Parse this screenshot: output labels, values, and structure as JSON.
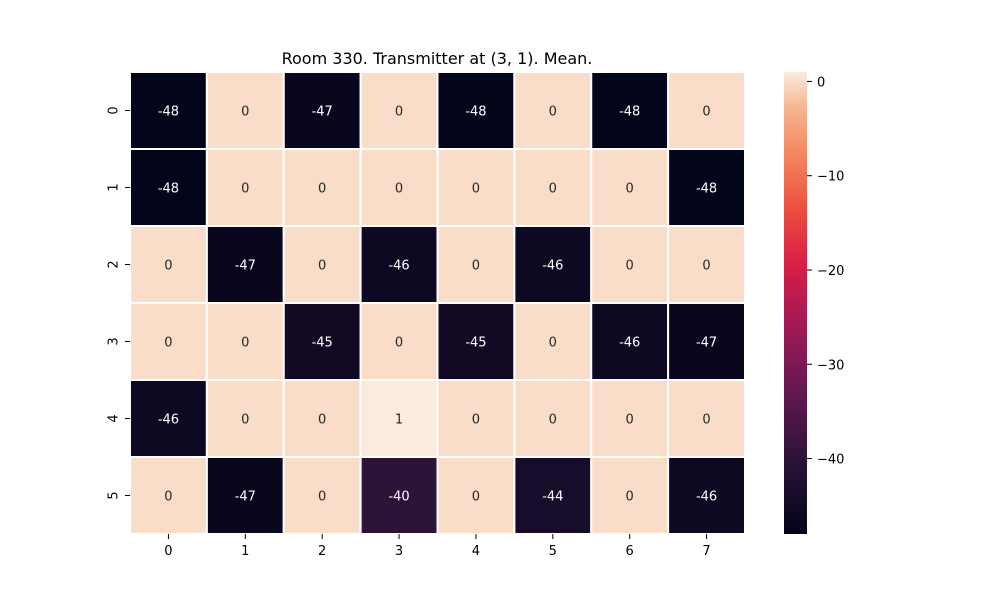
{
  "chart_data": {
    "type": "heatmap",
    "title": "Room 330. Transmitter at (3, 1). Mean.",
    "xlabel": "",
    "ylabel": "",
    "x_tick_labels": [
      "0",
      "1",
      "2",
      "3",
      "4",
      "5",
      "6",
      "7"
    ],
    "y_tick_labels": [
      "0",
      "1",
      "2",
      "3",
      "4",
      "5"
    ],
    "values": [
      [
        -48,
        0,
        -47,
        0,
        -48,
        0,
        -48,
        0
      ],
      [
        -48,
        0,
        0,
        0,
        0,
        0,
        0,
        -48
      ],
      [
        0,
        -47,
        0,
        -46,
        0,
        -46,
        0,
        0
      ],
      [
        0,
        0,
        -45,
        0,
        -45,
        0,
        -46,
        -47
      ],
      [
        -46,
        0,
        0,
        1,
        0,
        0,
        0,
        0
      ],
      [
        0,
        -47,
        0,
        -40,
        0,
        -44,
        0,
        -46
      ]
    ],
    "annotations": [
      [
        "-48",
        "0",
        "-47",
        "0",
        "-48",
        "0",
        "-48",
        "0"
      ],
      [
        "-48",
        "0",
        "0",
        "0",
        "0",
        "0",
        "0",
        "-48"
      ],
      [
        "0",
        "-47",
        "0",
        "-46",
        "0",
        "-46",
        "0",
        "0"
      ],
      [
        "0",
        "0",
        "-45",
        "0",
        "-45",
        "0",
        "-46",
        "-47"
      ],
      [
        "-46",
        "0",
        "0",
        "1",
        "0",
        "0",
        "0",
        "0"
      ],
      [
        "0",
        "-47",
        "0",
        "-40",
        "0",
        "-44",
        "0",
        "-46"
      ]
    ],
    "colorbar": {
      "vmin": -48,
      "vmax": 1,
      "ticks": [
        0,
        -10,
        -20,
        -30,
        -40
      ],
      "tick_labels": [
        "0",
        "−10",
        "−20",
        "−30",
        "−40"
      ],
      "colormap": "rocket"
    },
    "grid_line_color": "#ffffff"
  }
}
